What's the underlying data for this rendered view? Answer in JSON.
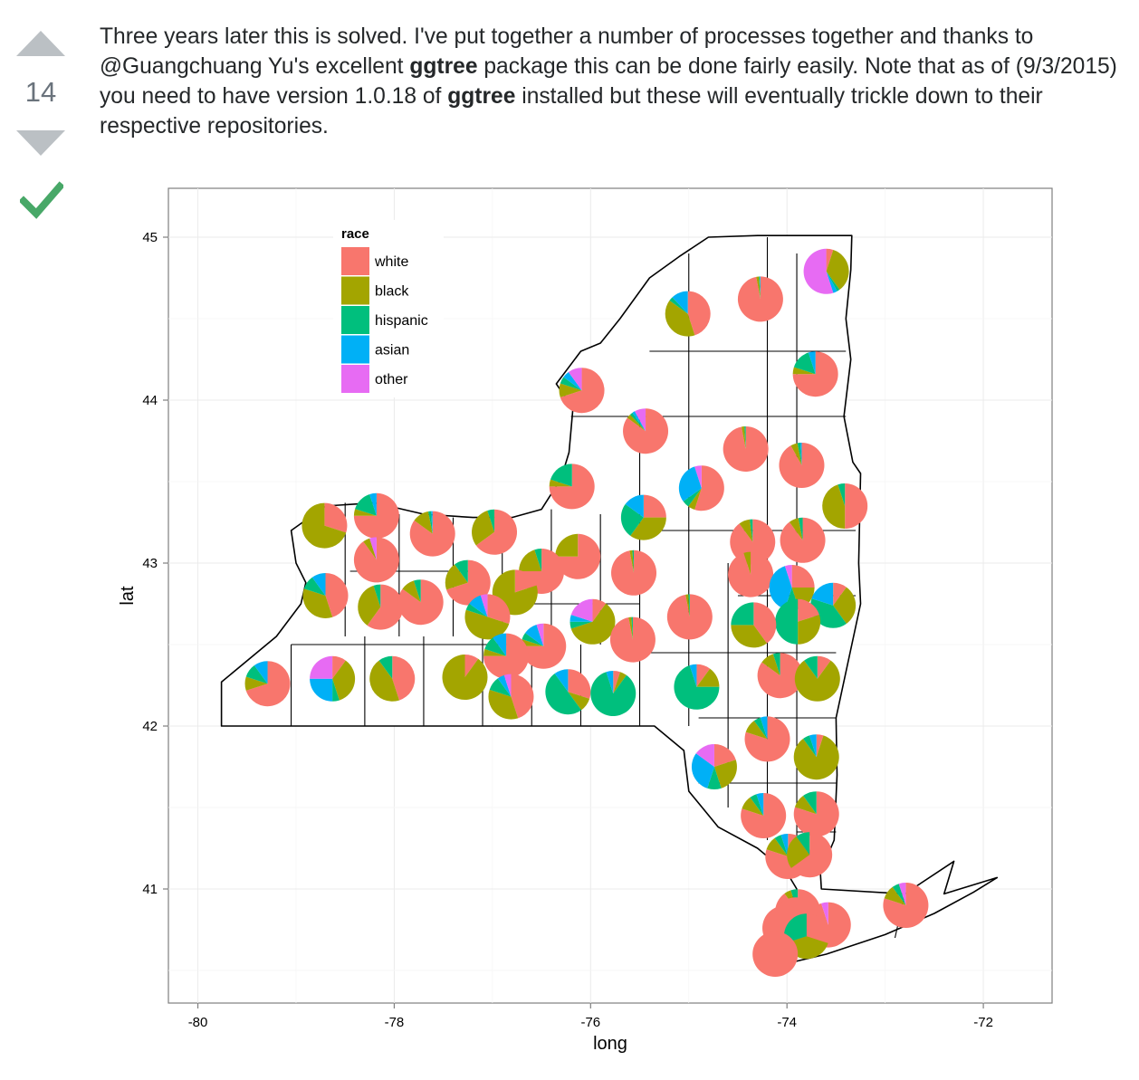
{
  "vote": {
    "score": "14"
  },
  "answer": {
    "t1": "Three years later this is solved. I've put together a number of processes together and thanks to @Guangchuang Yu's excellent ",
    "b1": "ggtree",
    "t2": " package this can be done fairly easily. Note that as of (9/3/2015) you need to have version 1.0.18 of ",
    "b2": "ggtree",
    "t3": " installed but these will eventually trickle down to their respective repositories."
  },
  "colors": {
    "white": "#F8766D",
    "black": "#A3A500",
    "hispanic": "#00BF7D",
    "asian": "#00B0F6",
    "other": "#E76BF3",
    "upvote": "#bbc0c4",
    "accepted": "#48a868"
  },
  "icons": [
    "upvote-arrow-icon",
    "downvote-arrow-icon",
    "accepted-checkmark-icon"
  ],
  "chart_data": {
    "type": "map-pie",
    "xlabel": "long",
    "ylabel": "lat",
    "xlim": [
      -80.3,
      -71.3
    ],
    "ylim": [
      40.3,
      45.3
    ],
    "x_ticks": [
      -80,
      -78,
      -76,
      -74,
      -72
    ],
    "y_ticks": [
      41,
      42,
      43,
      44,
      45
    ],
    "x_tick_labels": [
      "-80",
      "-78",
      "-76",
      "-74",
      "-72"
    ],
    "y_tick_labels": [
      "41",
      "42",
      "43",
      "44",
      "45"
    ],
    "grid": true,
    "legend": {
      "title": "race",
      "position": "top-left",
      "entries": [
        "white",
        "black",
        "hispanic",
        "asian",
        "other"
      ]
    },
    "series_order": [
      "white",
      "black",
      "hispanic",
      "asian",
      "other"
    ],
    "pies": [
      {
        "lon": -73.6,
        "lat": 44.79,
        "v": [
          0.05,
          0.35,
          0.02,
          0.03,
          0.55
        ]
      },
      {
        "lon": -74.27,
        "lat": 44.62,
        "v": [
          0.97,
          0.02,
          0.005,
          0.005,
          0.0
        ]
      },
      {
        "lon": -75.01,
        "lat": 44.53,
        "v": [
          0.45,
          0.4,
          0.03,
          0.12,
          0.0
        ]
      },
      {
        "lon": -73.71,
        "lat": 44.16,
        "v": [
          0.75,
          0.05,
          0.15,
          0.05,
          0.0
        ]
      },
      {
        "lon": -76.09,
        "lat": 44.06,
        "v": [
          0.7,
          0.1,
          0.05,
          0.05,
          0.1
        ]
      },
      {
        "lon": -75.44,
        "lat": 43.81,
        "v": [
          0.85,
          0.03,
          0.02,
          0.02,
          0.08
        ]
      },
      {
        "lon": -74.42,
        "lat": 43.7,
        "v": [
          0.97,
          0.02,
          0.01,
          0.0,
          0.0
        ]
      },
      {
        "lon": -73.85,
        "lat": 43.6,
        "v": [
          0.92,
          0.05,
          0.02,
          0.01,
          0.0
        ]
      },
      {
        "lon": -73.41,
        "lat": 43.35,
        "v": [
          0.5,
          0.45,
          0.05,
          0.0,
          0.0
        ]
      },
      {
        "lon": -76.19,
        "lat": 43.47,
        "v": [
          0.75,
          0.05,
          0.2,
          0.0,
          0.0
        ]
      },
      {
        "lon": -74.87,
        "lat": 43.46,
        "v": [
          0.55,
          0.05,
          0.05,
          0.3,
          0.05
        ]
      },
      {
        "lon": -75.46,
        "lat": 43.28,
        "v": [
          0.25,
          0.35,
          0.25,
          0.15,
          0.0
        ]
      },
      {
        "lon": -78.71,
        "lat": 43.23,
        "v": [
          0.3,
          0.7,
          0.0,
          0.0,
          0.0
        ]
      },
      {
        "lon": -78.18,
        "lat": 43.29,
        "v": [
          0.75,
          0.05,
          0.15,
          0.05,
          0.0
        ]
      },
      {
        "lon": -77.61,
        "lat": 43.18,
        "v": [
          0.85,
          0.12,
          0.02,
          0.01,
          0.0
        ]
      },
      {
        "lon": -76.98,
        "lat": 43.19,
        "v": [
          0.65,
          0.3,
          0.05,
          0.0,
          0.0
        ]
      },
      {
        "lon": -74.35,
        "lat": 43.13,
        "v": [
          0.9,
          0.08,
          0.02,
          0.0,
          0.0
        ]
      },
      {
        "lon": -73.84,
        "lat": 43.14,
        "v": [
          0.9,
          0.07,
          0.03,
          0.0,
          0.0
        ]
      },
      {
        "lon": -78.18,
        "lat": 43.02,
        "v": [
          0.9,
          0.05,
          0.0,
          0.0,
          0.05
        ]
      },
      {
        "lon": -76.13,
        "lat": 43.04,
        "v": [
          0.75,
          0.25,
          0.0,
          0.0,
          0.0
        ]
      },
      {
        "lon": -76.5,
        "lat": 42.95,
        "v": [
          0.75,
          0.2,
          0.05,
          0.0,
          0.0
        ]
      },
      {
        "lon": -75.56,
        "lat": 42.94,
        "v": [
          0.97,
          0.02,
          0.01,
          0.0,
          0.0
        ]
      },
      {
        "lon": -74.37,
        "lat": 42.93,
        "v": [
          0.95,
          0.05,
          0.0,
          0.0,
          0.0
        ]
      },
      {
        "lon": -77.25,
        "lat": 42.88,
        "v": [
          0.7,
          0.2,
          0.1,
          0.0,
          0.0
        ]
      },
      {
        "lon": -78.7,
        "lat": 42.8,
        "v": [
          0.45,
          0.35,
          0.1,
          0.1,
          0.0
        ]
      },
      {
        "lon": -78.14,
        "lat": 42.73,
        "v": [
          0.6,
          0.35,
          0.05,
          0.0,
          0.0
        ]
      },
      {
        "lon": -77.73,
        "lat": 42.76,
        "v": [
          0.85,
          0.1,
          0.05,
          0.0,
          0.0
        ]
      },
      {
        "lon": -76.77,
        "lat": 42.82,
        "v": [
          0.2,
          0.8,
          0.0,
          0.0,
          0.0
        ]
      },
      {
        "lon": -73.95,
        "lat": 42.85,
        "v": [
          0.25,
          0.2,
          0.1,
          0.4,
          0.05
        ]
      },
      {
        "lon": -73.53,
        "lat": 42.74,
        "v": [
          0.1,
          0.3,
          0.4,
          0.2,
          0.0
        ]
      },
      {
        "lon": -77.05,
        "lat": 42.67,
        "v": [
          0.3,
          0.5,
          0.05,
          0.1,
          0.05
        ]
      },
      {
        "lon": -74.99,
        "lat": 42.67,
        "v": [
          0.97,
          0.02,
          0.01,
          0.0,
          0.0
        ]
      },
      {
        "lon": -73.89,
        "lat": 42.64,
        "v": [
          0.2,
          0.3,
          0.5,
          0.0,
          0.0
        ]
      },
      {
        "lon": -74.34,
        "lat": 42.62,
        "v": [
          0.4,
          0.35,
          0.25,
          0.0,
          0.0
        ]
      },
      {
        "lon": -75.98,
        "lat": 42.64,
        "v": [
          0.1,
          0.6,
          0.05,
          0.05,
          0.2
        ]
      },
      {
        "lon": -75.57,
        "lat": 42.53,
        "v": [
          0.97,
          0.02,
          0.01,
          0.0,
          0.0
        ]
      },
      {
        "lon": -76.48,
        "lat": 42.49,
        "v": [
          0.75,
          0.05,
          0.05,
          0.1,
          0.05
        ]
      },
      {
        "lon": -76.86,
        "lat": 42.43,
        "v": [
          0.75,
          0.05,
          0.1,
          0.1,
          0.0
        ]
      },
      {
        "lon": -79.29,
        "lat": 42.26,
        "v": [
          0.7,
          0.1,
          0.1,
          0.1,
          0.0
        ]
      },
      {
        "lon": -78.63,
        "lat": 42.29,
        "v": [
          0.1,
          0.35,
          0.05,
          0.25,
          0.25
        ]
      },
      {
        "lon": -78.02,
        "lat": 42.29,
        "v": [
          0.45,
          0.45,
          0.1,
          0.0,
          0.0
        ]
      },
      {
        "lon": -77.28,
        "lat": 42.3,
        "v": [
          0.1,
          0.9,
          0.0,
          0.0,
          0.0
        ]
      },
      {
        "lon": -74.07,
        "lat": 42.31,
        "v": [
          0.85,
          0.1,
          0.05,
          0.0,
          0.0
        ]
      },
      {
        "lon": -73.69,
        "lat": 42.29,
        "v": [
          0.1,
          0.8,
          0.1,
          0.0,
          0.0
        ]
      },
      {
        "lon": -76.81,
        "lat": 42.18,
        "v": [
          0.45,
          0.35,
          0.1,
          0.05,
          0.05
        ]
      },
      {
        "lon": -76.23,
        "lat": 42.21,
        "v": [
          0.3,
          0.1,
          0.5,
          0.1,
          0.0
        ]
      },
      {
        "lon": -75.77,
        "lat": 42.2,
        "v": [
          0.05,
          0.05,
          0.85,
          0.05,
          0.0
        ]
      },
      {
        "lon": -74.92,
        "lat": 42.24,
        "v": [
          0.1,
          0.15,
          0.7,
          0.05,
          0.0
        ]
      },
      {
        "lon": -74.2,
        "lat": 41.92,
        "v": [
          0.8,
          0.1,
          0.05,
          0.05,
          0.0
        ]
      },
      {
        "lon": -73.7,
        "lat": 41.81,
        "v": [
          0.05,
          0.85,
          0.05,
          0.05,
          0.0
        ]
      },
      {
        "lon": -74.74,
        "lat": 41.75,
        "v": [
          0.2,
          0.25,
          0.1,
          0.3,
          0.15
        ]
      },
      {
        "lon": -74.24,
        "lat": 41.45,
        "v": [
          0.8,
          0.1,
          0.05,
          0.05,
          0.0
        ]
      },
      {
        "lon": -73.7,
        "lat": 41.46,
        "v": [
          0.8,
          0.1,
          0.1,
          0.0,
          0.0
        ]
      },
      {
        "lon": -73.99,
        "lat": 41.2,
        "v": [
          0.8,
          0.1,
          0.05,
          0.05,
          0.0
        ]
      },
      {
        "lon": -73.77,
        "lat": 41.21,
        "v": [
          0.65,
          0.25,
          0.1,
          0.0,
          0.0
        ]
      },
      {
        "lon": -72.79,
        "lat": 40.9,
        "v": [
          0.8,
          0.1,
          0.05,
          0.0,
          0.05
        ]
      },
      {
        "lon": -73.89,
        "lat": 40.86,
        "v": [
          0.9,
          0.05,
          0.05,
          0.0,
          0.0
        ]
      },
      {
        "lon": -73.58,
        "lat": 40.78,
        "v": [
          0.95,
          0.0,
          0.0,
          0.0,
          0.05
        ]
      },
      {
        "lon": -73.91,
        "lat": 40.81,
        "v": [
          1.0,
          0.0,
          0.0,
          0.0,
          0.0
        ]
      },
      {
        "lon": -74.02,
        "lat": 40.76,
        "v": [
          1.0,
          0.0,
          0.0,
          0.0,
          0.0
        ]
      },
      {
        "lon": -73.8,
        "lat": 40.71,
        "v": [
          0.3,
          0.4,
          0.3,
          0.0,
          0.0
        ]
      },
      {
        "lon": -74.12,
        "lat": 40.6,
        "v": [
          1.0,
          0.0,
          0.0,
          0.0,
          0.0
        ]
      }
    ]
  }
}
